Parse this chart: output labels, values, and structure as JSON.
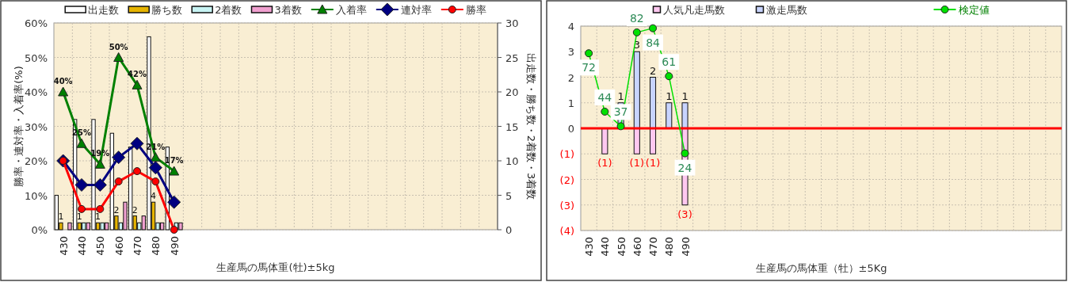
{
  "chart_data": [
    {
      "type": "bar",
      "legend": "top",
      "grid": true,
      "categories": [
        "430",
        "440",
        "450",
        "460",
        "470",
        "480",
        "490",
        null,
        null,
        null,
        null,
        null,
        null,
        null,
        null,
        null,
        null,
        null,
        null,
        null,
        null,
        null,
        null,
        null
      ],
      "series": [
        {
          "name": "出走数",
          "color": "#ffffff",
          "axis": "y2",
          "values": [
            5,
            16,
            16,
            14,
            12,
            28,
            12,
            null,
            null,
            null,
            null,
            null,
            null,
            null,
            null,
            null,
            null,
            null,
            null,
            null,
            null,
            null,
            null,
            null
          ]
        },
        {
          "name": "勝ち数",
          "color": "#e6b400",
          "axis": "y2",
          "values": [
            1,
            1,
            1,
            2,
            2,
            4,
            0,
            null,
            null,
            null,
            null,
            null,
            null,
            null,
            null,
            null,
            null,
            null,
            null,
            null,
            null,
            null,
            null,
            null
          ],
          "value_labels": [
            "1",
            "1",
            "1",
            "2",
            "2",
            "4",
            null,
            null,
            null,
            null,
            null,
            null,
            null,
            null,
            null,
            null,
            null,
            null,
            null,
            null,
            null,
            null,
            null,
            null
          ]
        },
        {
          "name": "2着数",
          "color": "#c8f4f4",
          "axis": "y2",
          "values": [
            0,
            1,
            1,
            1,
            1,
            1,
            1,
            null,
            null,
            null,
            null,
            null,
            null,
            null,
            null,
            null,
            null,
            null,
            null,
            null,
            null,
            null,
            null,
            null
          ]
        },
        {
          "name": "3着数",
          "color": "#f0a0d0",
          "axis": "y2",
          "values": [
            1,
            1,
            1,
            4,
            2,
            1,
            1,
            null,
            null,
            null,
            null,
            null,
            null,
            null,
            null,
            null,
            null,
            null,
            null,
            null,
            null,
            null,
            null,
            null
          ]
        },
        {
          "name": "入着率",
          "type": "line",
          "color": "#008000",
          "marker": "triangle",
          "values": [
            40,
            25,
            19,
            50,
            42,
            21,
            17,
            null,
            null,
            null,
            null,
            null,
            null,
            null,
            null,
            null,
            null,
            null,
            null,
            null,
            null,
            null,
            null,
            null
          ],
          "value_labels": [
            "40%",
            "25%",
            "19%",
            "50%",
            "42%",
            "21%",
            "17%",
            null,
            null,
            null,
            null,
            null,
            null,
            null,
            null,
            null,
            null,
            null,
            null,
            null,
            null,
            null,
            null,
            null
          ]
        },
        {
          "name": "連対率",
          "type": "line",
          "color": "#000080",
          "marker": "diamond",
          "values": [
            20,
            13,
            13,
            21,
            25,
            18,
            8,
            null,
            null,
            null,
            null,
            null,
            null,
            null,
            null,
            null,
            null,
            null,
            null,
            null,
            null,
            null,
            null,
            null
          ]
        },
        {
          "name": "勝率",
          "type": "line",
          "color": "#ff0000",
          "marker": "circle",
          "values": [
            20,
            6,
            6,
            14,
            17,
            14,
            0,
            null,
            null,
            null,
            null,
            null,
            null,
            null,
            null,
            null,
            null,
            null,
            null,
            null,
            null,
            null,
            null,
            null
          ]
        }
      ],
      "ylim": [
        0,
        60
      ],
      "yticks": [
        {
          "value": 0,
          "label": "0%"
        },
        {
          "value": 10,
          "label": "10%"
        },
        {
          "value": 20,
          "label": "20%"
        },
        {
          "value": 30,
          "label": "30%"
        },
        {
          "value": 40,
          "label": "40%"
        },
        {
          "value": 50,
          "label": "50%"
        },
        {
          "value": 60,
          "label": "60%"
        }
      ],
      "y2lim": [
        0,
        30
      ],
      "y2ticks": [
        0,
        5,
        10,
        15,
        20,
        25,
        30
      ],
      "ylabel": "勝率・連対率・入着率(%)",
      "y2label": "出走数・勝ち数・2着数・3着数",
      "xlabel": "生産馬の馬体重(牡)±5kg"
    },
    {
      "type": "bar",
      "stacked": true,
      "legend": "top",
      "grid": true,
      "categories": [
        "430",
        "440",
        "450",
        "460",
        "470",
        "480",
        "490",
        null,
        null,
        null,
        null,
        null,
        null,
        null,
        null,
        null,
        null,
        null,
        null,
        null,
        null,
        null,
        null,
        null,
        null,
        null,
        null,
        null,
        null,
        null
      ],
      "series": [
        {
          "name": "人気凡走馬数",
          "color": "#ffc8f0",
          "values": [
            0,
            -1,
            0,
            -1,
            -1,
            0,
            -3,
            null,
            null,
            null,
            null,
            null,
            null,
            null,
            null,
            null,
            null,
            null,
            null,
            null,
            null,
            null,
            null,
            null,
            null,
            null,
            null,
            null,
            null,
            null
          ],
          "value_labels": [
            null,
            "(1)",
            null,
            "(1)",
            "(1)",
            null,
            "(3)",
            null,
            null,
            null,
            null,
            null,
            null,
            null,
            null,
            null,
            null,
            null,
            null,
            null,
            null,
            null,
            null,
            null,
            null,
            null,
            null,
            null,
            null,
            null
          ]
        },
        {
          "name": "激走馬数",
          "color": "#c8d4ff",
          "values": [
            0,
            0,
            1,
            3,
            2,
            1,
            1,
            null,
            null,
            null,
            null,
            null,
            null,
            null,
            null,
            null,
            null,
            null,
            null,
            null,
            null,
            null,
            null,
            null,
            null,
            null,
            null,
            null,
            null,
            null
          ],
          "value_labels": [
            null,
            null,
            "1",
            "3",
            "2",
            "1",
            "1",
            null,
            null,
            null,
            null,
            null,
            null,
            null,
            null,
            null,
            null,
            null,
            null,
            null,
            null,
            null,
            null,
            null,
            null,
            null,
            null,
            null,
            null,
            null
          ]
        },
        {
          "name": "検定値",
          "type": "line",
          "axis": "y2",
          "color": "#00e000",
          "marker": "circle",
          "values": [
            72,
            44,
            37,
            82,
            84,
            61,
            24,
            null,
            null,
            null,
            null,
            null,
            null,
            null,
            null,
            null,
            null,
            null,
            null,
            null,
            null,
            null,
            null,
            null,
            null,
            null,
            null,
            null,
            null,
            null
          ],
          "value_labels": [
            "72",
            "44",
            "37",
            "82",
            "84",
            "61",
            "24",
            null,
            null,
            null,
            null,
            null,
            null,
            null,
            null,
            null,
            null,
            null,
            null,
            null,
            null,
            null,
            null,
            null,
            null,
            null,
            null,
            null,
            null,
            null
          ]
        }
      ],
      "ylim": [
        -4,
        4
      ],
      "yticks": [
        {
          "value": -4,
          "label": "(4)"
        },
        {
          "value": -3,
          "label": "(3)"
        },
        {
          "value": -2,
          "label": "(2)"
        },
        {
          "value": -1,
          "label": "(1)"
        },
        0,
        1,
        2,
        3,
        4
      ],
      "y2lim": [
        -13,
        85
      ],
      "ref_lines": [
        {
          "axis": "y",
          "value": 0,
          "color": "#ff0000"
        }
      ],
      "xlabel": "生産馬の馬体重（牡）±5Kg"
    }
  ]
}
